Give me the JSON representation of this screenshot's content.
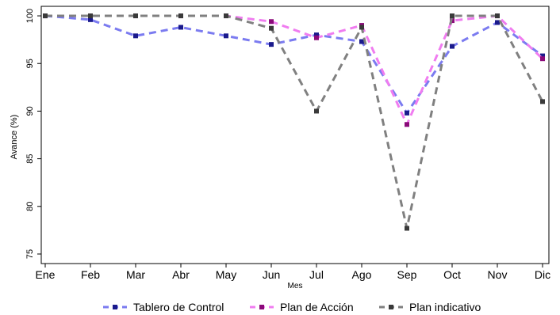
{
  "chart_data": {
    "type": "line",
    "xlabel": "Mes",
    "ylabel": "Avance (%)",
    "categories": [
      "Ene",
      "Feb",
      "Mar",
      "Abr",
      "May",
      "Jun",
      "Jul",
      "Ago",
      "Sep",
      "Oct",
      "Nov",
      "Dic"
    ],
    "yticks": [
      75,
      80,
      85,
      90,
      95,
      100
    ],
    "ylim": [
      74,
      101
    ],
    "grid": false,
    "legend_position": "bottom",
    "series": [
      {
        "name": "Tablero de Control",
        "values": [
          100,
          99.6,
          97.9,
          98.8,
          97.9,
          97.0,
          98.0,
          97.3,
          89.8,
          96.8,
          99.3,
          95.8
        ],
        "line_color": "#7b7bf0",
        "marker_color": "#1a1a8c"
      },
      {
        "name": "Plan de Acción",
        "values": [
          100,
          100,
          100,
          100,
          100,
          99.4,
          97.7,
          99.0,
          88.6,
          99.5,
          100,
          95.5
        ],
        "line_color": "#f07cf0",
        "marker_color": "#8b0a7a"
      },
      {
        "name": "Plan indicativo",
        "values": [
          100,
          100,
          100,
          100,
          100,
          98.7,
          90.0,
          98.8,
          77.7,
          100,
          100,
          91.0
        ],
        "line_color": "#808080",
        "marker_color": "#3a3a3a"
      }
    ]
  }
}
